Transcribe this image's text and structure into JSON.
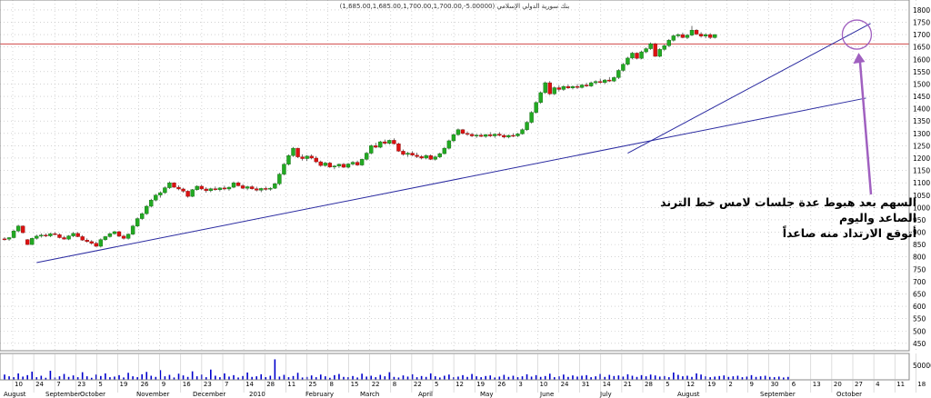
{
  "chart_data": {
    "type": "candlestick",
    "title": "بنك سورية الدولي الإسلامي (5.00000-,1,685.00,1,685.00,1,700.00,1,700.00)",
    "price_axis": {
      "min": 400,
      "max": 1800,
      "step": 50,
      "tick_labels": [
        "1800",
        "1750",
        "1700",
        "1650",
        "1600",
        "1550",
        "1500",
        "1450",
        "1400",
        "1350",
        "1300",
        "1250",
        "1200",
        "1150",
        "1100",
        "1050",
        "1000",
        "950",
        "900",
        "850",
        "800",
        "750",
        "700",
        "650",
        "600",
        "550",
        "500",
        "450"
      ]
    },
    "volume_axis": {
      "max": 90000,
      "tick_labels": [
        "50000"
      ]
    },
    "horizontal_level": 1662,
    "colors": {
      "up": "#22aa22",
      "down": "#dd1111",
      "volume": "#0000cc",
      "trendline": "#2a2aa0",
      "level": "#d04848",
      "grid": "#b8b8b8",
      "marker": "#a060c0"
    },
    "day_labels": [
      {
        "text": "10"
      },
      {
        "text": "24"
      },
      {
        "text": "7"
      },
      {
        "text": "23"
      },
      {
        "text": "5"
      },
      {
        "text": "19"
      },
      {
        "text": "26"
      },
      {
        "text": "9"
      },
      {
        "text": "16"
      },
      {
        "text": "23"
      },
      {
        "text": "7"
      },
      {
        "text": "14"
      },
      {
        "text": "28"
      },
      {
        "text": "11"
      },
      {
        "text": "25"
      },
      {
        "text": "8"
      },
      {
        "text": "15"
      },
      {
        "text": "22"
      },
      {
        "text": "8"
      },
      {
        "text": "22"
      },
      {
        "text": "5"
      },
      {
        "text": "12"
      },
      {
        "text": "19"
      },
      {
        "text": "26"
      },
      {
        "text": "3"
      },
      {
        "text": "10"
      },
      {
        "text": "24"
      },
      {
        "text": "31"
      },
      {
        "text": "14"
      },
      {
        "text": "21"
      },
      {
        "text": "28"
      },
      {
        "text": "5"
      },
      {
        "text": "12"
      },
      {
        "text": "19"
      },
      {
        "text": "2"
      },
      {
        "text": "9"
      },
      {
        "text": "30"
      },
      {
        "text": "6"
      },
      {
        "text": "13"
      },
      {
        "text": "20"
      },
      {
        "text": "27"
      },
      {
        "text": "4"
      },
      {
        "text": "11"
      },
      {
        "text": "18"
      }
    ],
    "month_labels": [
      {
        "text": "August"
      },
      {
        "text": "September"
      },
      {
        "text": "October"
      },
      {
        "text": "November"
      },
      {
        "text": "December"
      },
      {
        "text": "2010"
      },
      {
        "text": "February"
      },
      {
        "text": "March"
      },
      {
        "text": "April"
      },
      {
        "text": "May"
      },
      {
        "text": "June"
      },
      {
        "text": "July"
      },
      {
        "text": "August"
      },
      {
        "text": "September"
      },
      {
        "text": "October"
      }
    ],
    "trendlines": [
      {
        "name": "long-term-uptrend",
        "from": {
          "session": 7,
          "price": 777
        },
        "to": {
          "session": 188,
          "price": 1443
        }
      },
      {
        "name": "short-term-uptrend",
        "from": {
          "session": 136,
          "price": 1220
        },
        "to": {
          "session": 189,
          "price": 1745
        }
      }
    ],
    "highlight": {
      "session": 186,
      "price": 1700
    },
    "candles_ohlc": [
      [
        873,
        880,
        866,
        872
      ],
      [
        872,
        880,
        865,
        878
      ],
      [
        878,
        910,
        875,
        905
      ],
      [
        905,
        930,
        900,
        925
      ],
      [
        925,
        928,
        895,
        898
      ],
      [
        870,
        872,
        848,
        850
      ],
      [
        850,
        878,
        848,
        875
      ],
      [
        875,
        890,
        870,
        884
      ],
      [
        884,
        895,
        878,
        888
      ],
      [
        888,
        895,
        880,
        885
      ],
      [
        885,
        898,
        880,
        894
      ],
      [
        894,
        900,
        888,
        890
      ],
      [
        890,
        895,
        875,
        878
      ],
      [
        878,
        885,
        870,
        872
      ],
      [
        872,
        888,
        868,
        885
      ],
      [
        885,
        900,
        880,
        895
      ],
      [
        895,
        900,
        880,
        882
      ],
      [
        882,
        888,
        865,
        868
      ],
      [
        868,
        875,
        858,
        862
      ],
      [
        862,
        868,
        850,
        855
      ],
      [
        855,
        862,
        840,
        843
      ],
      [
        843,
        875,
        838,
        870
      ],
      [
        870,
        885,
        865,
        882
      ],
      [
        882,
        898,
        878,
        894
      ],
      [
        894,
        905,
        890,
        902
      ],
      [
        902,
        905,
        880,
        884
      ],
      [
        884,
        890,
        870,
        875
      ],
      [
        875,
        895,
        870,
        892
      ],
      [
        892,
        930,
        888,
        925
      ],
      [
        925,
        960,
        920,
        955
      ],
      [
        955,
        980,
        950,
        975
      ],
      [
        975,
        1010,
        970,
        1005
      ],
      [
        1005,
        1035,
        1000,
        1030
      ],
      [
        1030,
        1055,
        1025,
        1050
      ],
      [
        1050,
        1065,
        1040,
        1060
      ],
      [
        1060,
        1085,
        1055,
        1080
      ],
      [
        1080,
        1105,
        1075,
        1100
      ],
      [
        1100,
        1102,
        1080,
        1082
      ],
      [
        1082,
        1090,
        1070,
        1075
      ],
      [
        1075,
        1080,
        1060,
        1066
      ],
      [
        1066,
        1070,
        1040,
        1045
      ],
      [
        1045,
        1075,
        1042,
        1072
      ],
      [
        1072,
        1090,
        1068,
        1086
      ],
      [
        1086,
        1092,
        1070,
        1075
      ],
      [
        1075,
        1082,
        1060,
        1068
      ],
      [
        1068,
        1080,
        1062,
        1076
      ],
      [
        1076,
        1085,
        1068,
        1072
      ],
      [
        1072,
        1082,
        1065,
        1079
      ],
      [
        1079,
        1088,
        1070,
        1075
      ],
      [
        1075,
        1085,
        1068,
        1082
      ],
      [
        1082,
        1105,
        1078,
        1100
      ],
      [
        1100,
        1105,
        1085,
        1088
      ],
      [
        1088,
        1095,
        1075,
        1078
      ],
      [
        1078,
        1088,
        1070,
        1084
      ],
      [
        1084,
        1090,
        1072,
        1076
      ],
      [
        1076,
        1084,
        1065,
        1070
      ],
      [
        1070,
        1080,
        1062,
        1077
      ],
      [
        1077,
        1085,
        1068,
        1074
      ],
      [
        1074,
        1082,
        1068,
        1078
      ],
      [
        1078,
        1100,
        1075,
        1096
      ],
      [
        1096,
        1140,
        1090,
        1135
      ],
      [
        1135,
        1180,
        1130,
        1175
      ],
      [
        1175,
        1215,
        1170,
        1210
      ],
      [
        1210,
        1245,
        1205,
        1240
      ],
      [
        1240,
        1242,
        1200,
        1205
      ],
      [
        1205,
        1215,
        1190,
        1198
      ],
      [
        1198,
        1212,
        1188,
        1208
      ],
      [
        1208,
        1215,
        1195,
        1200
      ],
      [
        1200,
        1208,
        1180,
        1185
      ],
      [
        1185,
        1190,
        1165,
        1170
      ],
      [
        1170,
        1185,
        1165,
        1180
      ],
      [
        1180,
        1185,
        1160,
        1164
      ],
      [
        1164,
        1172,
        1155,
        1168
      ],
      [
        1168,
        1178,
        1160,
        1175
      ],
      [
        1175,
        1180,
        1160,
        1163
      ],
      [
        1163,
        1180,
        1158,
        1176
      ],
      [
        1176,
        1188,
        1170,
        1183
      ],
      [
        1183,
        1190,
        1168,
        1172
      ],
      [
        1172,
        1198,
        1168,
        1195
      ],
      [
        1195,
        1225,
        1190,
        1220
      ],
      [
        1220,
        1255,
        1215,
        1250
      ],
      [
        1250,
        1262,
        1240,
        1244
      ],
      [
        1244,
        1270,
        1240,
        1266
      ],
      [
        1266,
        1275,
        1255,
        1260
      ],
      [
        1260,
        1275,
        1255,
        1272
      ],
      [
        1272,
        1280,
        1255,
        1258
      ],
      [
        1258,
        1262,
        1225,
        1228
      ],
      [
        1228,
        1235,
        1210,
        1215
      ],
      [
        1215,
        1225,
        1205,
        1220
      ],
      [
        1220,
        1228,
        1208,
        1212
      ],
      [
        1212,
        1222,
        1200,
        1206
      ],
      [
        1206,
        1212,
        1195,
        1200
      ],
      [
        1200,
        1215,
        1195,
        1210
      ],
      [
        1210,
        1215,
        1192,
        1195
      ],
      [
        1195,
        1210,
        1190,
        1205
      ],
      [
        1205,
        1222,
        1200,
        1218
      ],
      [
        1218,
        1245,
        1215,
        1240
      ],
      [
        1240,
        1275,
        1235,
        1270
      ],
      [
        1270,
        1300,
        1265,
        1295
      ],
      [
        1295,
        1320,
        1290,
        1315
      ],
      [
        1315,
        1318,
        1295,
        1300
      ],
      [
        1300,
        1308,
        1290,
        1296
      ],
      [
        1296,
        1302,
        1285,
        1290
      ],
      [
        1290,
        1298,
        1282,
        1293
      ],
      [
        1293,
        1300,
        1285,
        1288
      ],
      [
        1288,
        1298,
        1282,
        1295
      ],
      [
        1295,
        1305,
        1285,
        1290
      ],
      [
        1290,
        1300,
        1282,
        1297
      ],
      [
        1297,
        1305,
        1288,
        1292
      ],
      [
        1292,
        1298,
        1280,
        1285
      ],
      [
        1285,
        1295,
        1280,
        1292
      ],
      [
        1292,
        1300,
        1285,
        1290
      ],
      [
        1290,
        1302,
        1285,
        1298
      ],
      [
        1298,
        1320,
        1295,
        1315
      ],
      [
        1315,
        1350,
        1310,
        1345
      ],
      [
        1345,
        1390,
        1340,
        1385
      ],
      [
        1385,
        1430,
        1380,
        1425
      ],
      [
        1425,
        1470,
        1420,
        1465
      ],
      [
        1465,
        1510,
        1460,
        1505
      ],
      [
        1505,
        1512,
        1455,
        1460
      ],
      [
        1460,
        1490,
        1455,
        1485
      ],
      [
        1485,
        1495,
        1470,
        1478
      ],
      [
        1478,
        1495,
        1472,
        1490
      ],
      [
        1490,
        1498,
        1480,
        1484
      ],
      [
        1484,
        1494,
        1478,
        1490
      ],
      [
        1490,
        1500,
        1480,
        1486
      ],
      [
        1486,
        1500,
        1482,
        1496
      ],
      [
        1496,
        1505,
        1488,
        1492
      ],
      [
        1492,
        1510,
        1488,
        1505
      ],
      [
        1505,
        1515,
        1498,
        1510
      ],
      [
        1510,
        1522,
        1502,
        1506
      ],
      [
        1506,
        1520,
        1500,
        1516
      ],
      [
        1516,
        1528,
        1508,
        1512
      ],
      [
        1512,
        1530,
        1508,
        1526
      ],
      [
        1526,
        1560,
        1520,
        1555
      ],
      [
        1555,
        1585,
        1550,
        1580
      ],
      [
        1580,
        1610,
        1575,
        1605
      ],
      [
        1605,
        1630,
        1600,
        1625
      ],
      [
        1625,
        1628,
        1600,
        1604
      ],
      [
        1604,
        1635,
        1600,
        1630
      ],
      [
        1630,
        1648,
        1625,
        1643
      ],
      [
        1643,
        1668,
        1638,
        1663
      ],
      [
        1663,
        1666,
        1610,
        1612
      ],
      [
        1612,
        1645,
        1608,
        1640
      ],
      [
        1640,
        1660,
        1635,
        1655
      ],
      [
        1655,
        1682,
        1650,
        1677
      ],
      [
        1677,
        1700,
        1672,
        1695
      ],
      [
        1695,
        1705,
        1688,
        1700
      ],
      [
        1700,
        1708,
        1685,
        1688
      ],
      [
        1688,
        1702,
        1682,
        1698
      ],
      [
        1698,
        1735,
        1694,
        1718
      ],
      [
        1718,
        1722,
        1698,
        1702
      ],
      [
        1702,
        1710,
        1688,
        1694
      ],
      [
        1694,
        1705,
        1685,
        1700
      ],
      [
        1700,
        1706,
        1682,
        1688
      ],
      [
        1688,
        1702,
        1684,
        1700
      ]
    ],
    "volumes": [
      18000,
      12000,
      9000,
      22000,
      11000,
      16000,
      28000,
      9000,
      14000,
      7000,
      31000,
      8000,
      12000,
      20000,
      10000,
      15000,
      9000,
      26000,
      12000,
      7000,
      18000,
      13000,
      22000,
      9000,
      11000,
      16000,
      8000,
      24000,
      12000,
      9000,
      19000,
      27000,
      14000,
      10000,
      33000,
      12000,
      17000,
      8000,
      21000,
      15000,
      10000,
      29000,
      12000,
      18000,
      9000,
      35000,
      14000,
      9000,
      22000,
      11000,
      16000,
      8000,
      13000,
      25000,
      10000,
      12000,
      19000,
      9000,
      14000,
      70000,
      11000,
      17000,
      9000,
      13000,
      24000,
      8000,
      10000,
      15000,
      9000,
      18000,
      12000,
      7000,
      16000,
      20000,
      10000,
      9000,
      13000,
      8000,
      21000,
      11000,
      14000,
      9000,
      17000,
      12000,
      26000,
      10000,
      8000,
      15000,
      11000,
      19000,
      9000,
      13000,
      10000,
      22000,
      12000,
      8000,
      14000,
      18000,
      9000,
      11000,
      16000,
      10000,
      20000,
      12000,
      9000,
      13000,
      15000,
      8000,
      11000,
      17000,
      10000,
      14000,
      9000,
      12000,
      19000,
      11000,
      16000,
      10000,
      13000,
      21000,
      9000,
      12000,
      18000,
      10000,
      15000,
      11000,
      14000,
      16000,
      9000,
      12000,
      20000,
      10000,
      17000,
      13000,
      15000,
      11000,
      19000,
      14000,
      10000,
      16000,
      12000,
      18000,
      15000,
      11000,
      13000,
      9000,
      25000,
      17000,
      12000,
      14000,
      10000,
      22000,
      18000,
      12000,
      9000,
      11000,
      13000,
      15000,
      10000,
      12000,
      14000,
      9000,
      11000,
      16000,
      10000,
      12000,
      14000,
      10000,
      9000,
      11000,
      8000,
      10000
    ],
    "annotation": {
      "line1": "السهم بعد هبوط عدة جلسات لامس خط الترند الصاعد واليوم",
      "line2": "أتوقع الارتداد منه صاعداً"
    }
  }
}
